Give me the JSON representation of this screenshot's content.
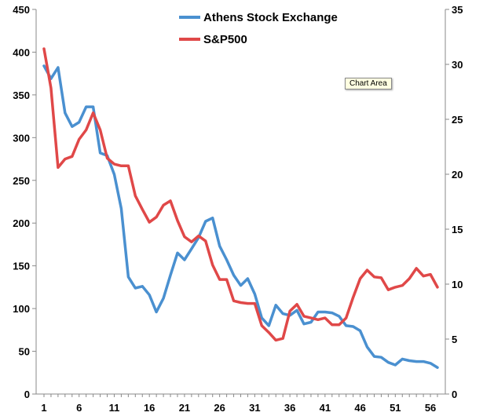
{
  "chart_data": {
    "type": "line",
    "x": [
      1,
      2,
      3,
      4,
      5,
      6,
      7,
      8,
      9,
      10,
      11,
      12,
      13,
      14,
      15,
      16,
      17,
      18,
      19,
      20,
      21,
      22,
      23,
      24,
      25,
      26,
      27,
      28,
      29,
      30,
      31,
      32,
      33,
      34,
      35,
      36,
      37,
      38,
      39,
      40,
      41,
      42,
      43,
      44,
      45,
      46,
      47,
      48,
      49,
      50,
      51,
      52,
      53,
      54,
      55,
      56,
      57
    ],
    "x_ticks": [
      "1",
      "6",
      "11",
      "16",
      "21",
      "26",
      "31",
      "36",
      "41",
      "46",
      "51",
      "56"
    ],
    "left_axis": {
      "ylim": [
        0,
        450
      ],
      "ticks": [
        "0",
        "50",
        "100",
        "150",
        "200",
        "250",
        "300",
        "350",
        "400",
        "450"
      ]
    },
    "right_axis": {
      "ylim": [
        0,
        35
      ],
      "ticks": [
        "0",
        "5",
        "10",
        "15",
        "20",
        "25",
        "30",
        "35"
      ]
    },
    "series": [
      {
        "name": "Athens Stock Exchange",
        "axis": "left",
        "color": "#4a90d0",
        "values": [
          384,
          369,
          382,
          329,
          313,
          318,
          336,
          336,
          282,
          279,
          257,
          217,
          137,
          124,
          126,
          116,
          96,
          112,
          139,
          165,
          157,
          170,
          183,
          202,
          206,
          173,
          157,
          139,
          127,
          135,
          117,
          89,
          80,
          104,
          94,
          92,
          98,
          82,
          84,
          96,
          96,
          95,
          91,
          80,
          79,
          74,
          55,
          44,
          43,
          37,
          34,
          41,
          39,
          38,
          38,
          36,
          31
        ]
      },
      {
        "name": "S&P500",
        "axis": "left",
        "color": "#e04848",
        "values": [
          404,
          358,
          265,
          275,
          278,
          298,
          309,
          329,
          309,
          276,
          269,
          267,
          267,
          232,
          216,
          201,
          207,
          221,
          226,
          203,
          184,
          178,
          185,
          179,
          151,
          134,
          134,
          109,
          107,
          106,
          106,
          80,
          72,
          63,
          65,
          97,
          105,
          91,
          89,
          87,
          89,
          81,
          81,
          89,
          113,
          135,
          145,
          137,
          136,
          122,
          125,
          127,
          135,
          147,
          138,
          140,
          125
        ]
      }
    ],
    "legend_position": "top",
    "grid": false,
    "annotation": "Chart Area"
  }
}
